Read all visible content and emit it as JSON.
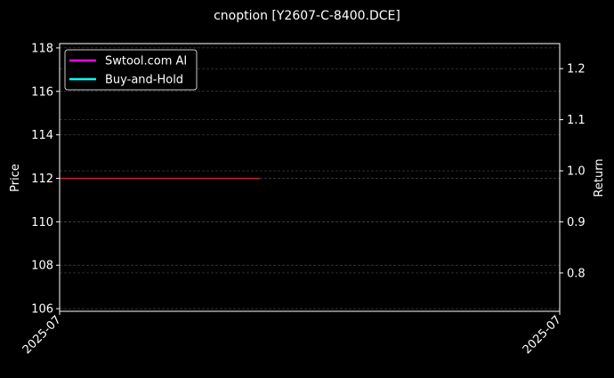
{
  "chart_data": {
    "type": "line",
    "title": "cnoption [Y2607-C-8400.DCE]",
    "ylabel": "Price",
    "y2label": "Return",
    "ylim": [
      105.88,
      118.2
    ],
    "y2lim": [
      0.725,
      1.249
    ],
    "yticks": [
      106,
      108,
      110,
      112,
      114,
      116,
      118
    ],
    "y2ticks": [
      0.8,
      0.9,
      1.0,
      1.1,
      1.2
    ],
    "xtick_labels": [
      "2025-07",
      "2025-07"
    ],
    "grid": true,
    "legend_placement": "top-left",
    "legend": [
      {
        "name": "Swtool.com AI",
        "color": "#ff00ff"
      },
      {
        "name": "Buy-and-Hold",
        "color": "#00ffff"
      }
    ],
    "price_line": {
      "color": "#d62728",
      "x_fraction": [
        0,
        0.4
      ],
      "values": [
        112,
        112
      ]
    },
    "background": "#000000"
  }
}
